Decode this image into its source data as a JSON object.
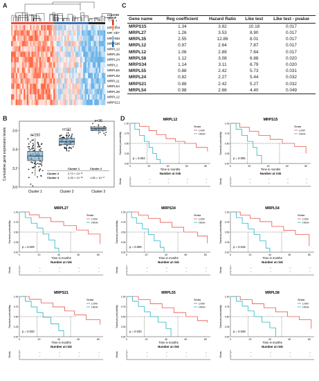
{
  "panels": {
    "a": "A",
    "b": "B",
    "c": "C",
    "d": "D"
  },
  "heatmap": {
    "legend_title_1": "CLUSTER",
    "legend_title_2": "GROUP",
    "scale_ticks": [
      "4",
      "2",
      "0",
      "-2",
      "-4"
    ],
    "genes": [
      "MRPS34",
      "MRPL27",
      "MRPS15",
      "MRPS26",
      "MRPL12",
      "MRPL35",
      "MRPL24",
      "MRPL1",
      "MRPL55",
      "MRPL58",
      "MRPL11",
      "MRPL54",
      "MRPL38",
      "MRPL12",
      "MRPS21"
    ]
  },
  "boxplot": {
    "ylabel": "Cumulative gene expression levels",
    "chart_data": {
      "type": "box",
      "categories": [
        "Cluster 1",
        "Cluster 2",
        "Cluster 3"
      ],
      "counts": [
        "n=193",
        "n=111",
        "n=36"
      ],
      "medians": [
        3.33,
        3.48,
        3.62
      ],
      "q1": [
        3.28,
        3.45,
        3.6
      ],
      "q3": [
        3.38,
        3.52,
        3.64
      ],
      "whisker_low": [
        3.12,
        3.38,
        3.56
      ],
      "whisker_high": [
        3.52,
        3.58,
        3.67
      ],
      "ylim": [
        3.0,
        3.7
      ],
      "yticks": [
        "3.0",
        "3.2",
        "3.4",
        "3.6"
      ]
    },
    "pvalue_table": {
      "headers": [
        "",
        "Cluster 1",
        "Cluster 2"
      ],
      "rows": [
        [
          "Cluster 2",
          "3.73 × 10⁻³¹",
          ""
        ],
        [
          "Cluster 3",
          "4.25 × 10⁻³⁸",
          "1.85 × 10⁻¹⁷"
        ]
      ]
    }
  },
  "table": {
    "headers": [
      "Gene name",
      "Reg coefficient",
      "Hazard Ratio",
      "Like test",
      "Like test - pvalue"
    ],
    "rows": [
      [
        "MRPS15",
        "1.34",
        "3.82",
        "10.18",
        "0.017"
      ],
      [
        "MRPL27",
        "1.26",
        "3.53",
        "8.90",
        "0.017"
      ],
      [
        "MRPL35",
        "2.55",
        "12.86",
        "8.01",
        "0.017"
      ],
      [
        "MRPL12",
        "0.97",
        "2.64",
        "7.87",
        "0.017"
      ],
      [
        "MRPL12",
        "1.06",
        "2.89",
        "7.64",
        "0.017"
      ],
      [
        "MRPL58",
        "1.12",
        "3.08",
        "6.88",
        "0.020"
      ],
      [
        "MRPS34",
        "1.14",
        "3.11",
        "6.79",
        "0.020"
      ],
      [
        "MRPL55",
        "0.88",
        "2.42",
        "5.73",
        "0.031"
      ],
      [
        "MRPL24",
        "0.82",
        "2.27",
        "5.44",
        "0.032"
      ],
      [
        "MRPS21",
        "0.88",
        "2.42",
        "5.27",
        "0.032"
      ],
      [
        "MRPL54",
        "0.98",
        "2.66",
        "4.40",
        "0.049"
      ]
    ]
  },
  "km": {
    "strata_title": "Strata",
    "strata_low": "LOW",
    "strata_high": "HIGH",
    "ylabel": "Survival probability",
    "xlabel": "Time in months",
    "risk_title": "Number at risk",
    "risk_ylabel": "Strata",
    "xticks": [
      "0",
      "20",
      "40",
      "60",
      "80"
    ],
    "yticks": [
      "0.00",
      "0.25",
      "0.50",
      "0.75",
      "1.00"
    ],
    "colors": {
      "low": "#e8554e",
      "high": "#26b5c0"
    },
    "plots": [
      {
        "title": "MRPL12",
        "pvalue": "p = 0.003"
      },
      {
        "title": "MRPS15",
        "pvalue": "p = 0.005"
      },
      {
        "title": "MRPL27",
        "pvalue": "p = 0.029"
      },
      {
        "title": "MRPS34",
        "pvalue": "p = 0.009"
      },
      {
        "title": "MRPL54",
        "pvalue": "p = 0.018"
      },
      {
        "title": "MRPS21",
        "pvalue": "p = 0.033"
      },
      {
        "title": "MRPL55",
        "pvalue": "p = 0.033"
      },
      {
        "title": "MRPL58",
        "pvalue": "p = 0.048"
      }
    ]
  }
}
